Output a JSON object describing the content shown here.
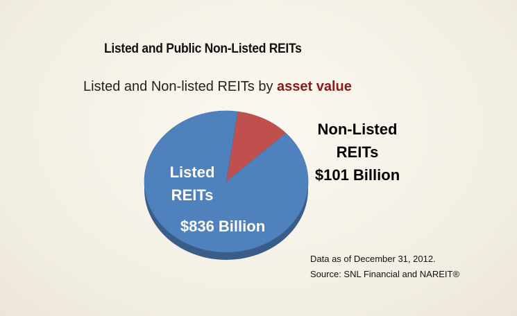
{
  "chart_data": {
    "type": "pie",
    "title": "Listed and Public Non-Listed REITs",
    "subtitle": "Listed and Non-listed REITs by",
    "subtitle_emphasis": "asset value",
    "categories": [
      "Listed REITs",
      "Non-Listed REITs"
    ],
    "values": [
      836,
      101
    ],
    "value_labels": [
      "$836 Billion",
      "$101 Billion"
    ],
    "colors": [
      "#4f81bd",
      "#c0504d"
    ],
    "notes": [
      "Data as of December 31, 2012.",
      "Source: SNL Financial and NAREIT®"
    ]
  }
}
